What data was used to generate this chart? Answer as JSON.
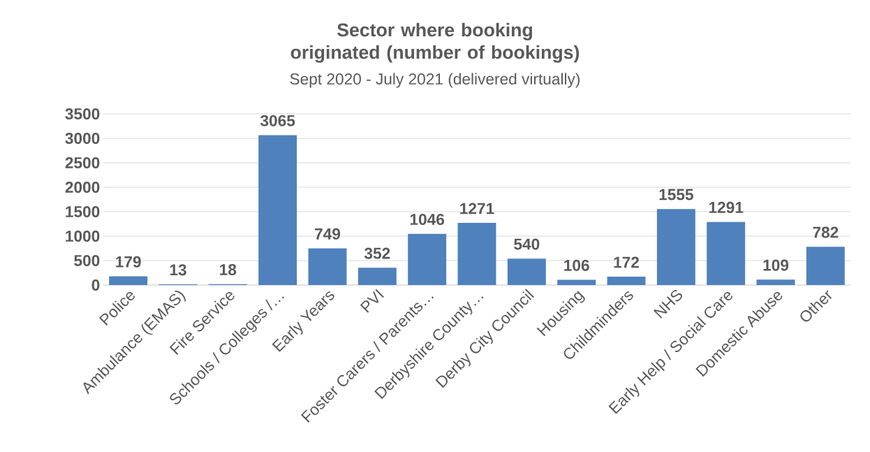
{
  "chart_data": {
    "type": "bar",
    "title": "Sector where booking originated (number of bookings)",
    "subtitle": "Sept 2020 - July 2021 (delivered virtually)",
    "categories": [
      "Police",
      "Ambulance (EMAS)",
      "Fire Service",
      "Schools / Colleges /…",
      "Early Years",
      "PVI",
      "Foster Carers / Parents…",
      "Derbyshire County…",
      "Derby City Council",
      "Housing",
      "Childminders",
      "NHS",
      "Early Help / Social Care",
      "Domestic Abuse",
      "Other"
    ],
    "values": [
      179,
      13,
      18,
      3065,
      749,
      352,
      1046,
      1271,
      540,
      106,
      172,
      1555,
      1291,
      109,
      782
    ],
    "color": "#4f81bd",
    "ylim": [
      0,
      3500
    ],
    "yticks": [
      0,
      500,
      1000,
      1500,
      2000,
      2500,
      3000,
      3500
    ],
    "grid": "y",
    "data_labels": true
  }
}
